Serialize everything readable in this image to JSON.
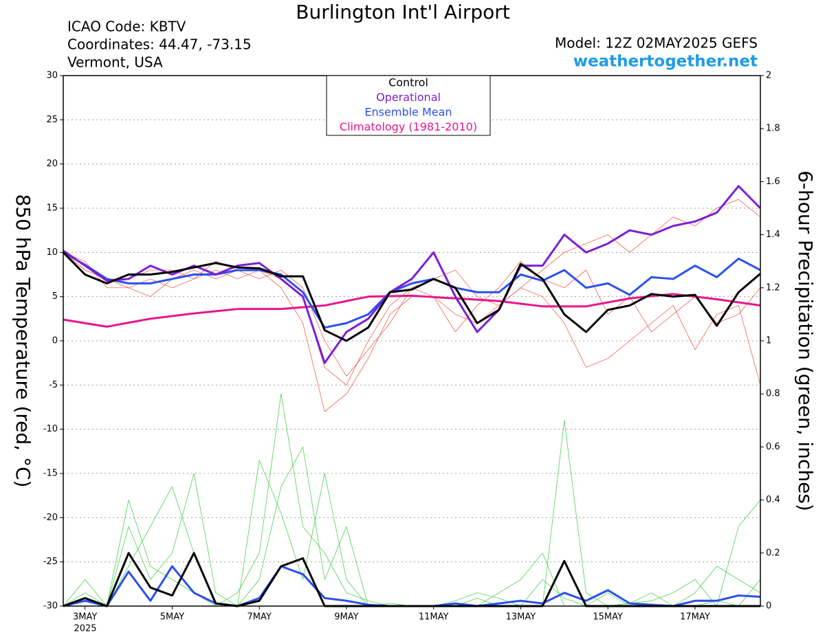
{
  "chart_data": {
    "type": "line",
    "title": "Burlington Int'l Airport",
    "info_lines": [
      "ICAO Code: KBTV",
      "Coordinates: 44.47, -73.15",
      "Vermont, USA"
    ],
    "model": "Model: 12Z 02MAY2025 GEFS",
    "site": "weathertogether.net",
    "y_label": "850 hPa Temperature (red, °C)",
    "y2_label": "6-hour Precipitation (green, inches)",
    "year_label": "2025",
    "grid": true,
    "legend": "top",
    "x": [
      2.5,
      3,
      3.5,
      4,
      4.5,
      5,
      5.5,
      6,
      6.5,
      7,
      7.5,
      8,
      8.5,
      9,
      9.5,
      10,
      10.5,
      11,
      11.5,
      12,
      12.5,
      13,
      13.5,
      14,
      14.5,
      15,
      15.5,
      16,
      16.5,
      17,
      17.5,
      18,
      18.5
    ],
    "xlim": [
      2.5,
      18.5
    ],
    "xticks": [
      {
        "value": 3,
        "label": "3MAY"
      },
      {
        "value": 5,
        "label": "5MAY"
      },
      {
        "value": 7,
        "label": "7MAY"
      },
      {
        "value": 9,
        "label": "9MAY"
      },
      {
        "value": 11,
        "label": "11MAY"
      },
      {
        "value": 13,
        "label": "13MAY"
      },
      {
        "value": 15,
        "label": "15MAY"
      },
      {
        "value": 17,
        "label": "17MAY"
      }
    ],
    "ylim": [
      -30,
      30
    ],
    "yticks": [
      30,
      25,
      20,
      15,
      10,
      5,
      0,
      -5,
      -10,
      -15,
      -20,
      -25,
      -30
    ],
    "y2lim": [
      0,
      2
    ],
    "y2ticks": [
      2,
      1.8,
      1.6,
      1.4,
      1.2,
      1,
      0.8,
      0.6,
      0.4,
      0.2,
      0
    ],
    "series": [
      {
        "color": "#f04a3a",
        "line_width": 0.7,
        "values": [
          10,
          8,
          7,
          6,
          7,
          6,
          7,
          8,
          7,
          8,
          7,
          5,
          -3,
          -5,
          0,
          4,
          6,
          7,
          8,
          5,
          4,
          6,
          8,
          10,
          11,
          12,
          10,
          12,
          14,
          13,
          15,
          16,
          14
        ]
      },
      {
        "color": "#f04a3a",
        "line_width": 0.7,
        "values": [
          10,
          9,
          6,
          6,
          5,
          7,
          8,
          7,
          8,
          8,
          6,
          2,
          -8,
          -6,
          -2,
          3,
          5,
          5,
          3,
          2,
          4,
          6,
          5,
          2,
          -3,
          -2,
          0,
          2,
          4,
          -1,
          3,
          4,
          -5
        ]
      },
      {
        "color": "#f04a3a",
        "line_width": 0.7,
        "values": [
          10,
          8,
          7,
          7,
          8,
          8,
          7,
          9,
          8,
          7,
          8,
          6,
          0,
          -4,
          -1,
          2,
          6,
          5,
          1,
          4,
          6,
          9,
          7,
          6,
          8,
          3,
          5,
          1,
          3,
          5,
          2,
          3,
          6
        ]
      },
      {
        "color": "#33cc33",
        "line_width": 0.7,
        "axis": "y2",
        "values": [
          0,
          0.1,
          0,
          0.3,
          0.1,
          0.2,
          0.5,
          0.05,
          0,
          0.1,
          0.45,
          0.6,
          0.1,
          0.3,
          0,
          0,
          0,
          0,
          0.02,
          0.05,
          0.03,
          0,
          0,
          0.7,
          0.05,
          0,
          0.01,
          0.02,
          0.05,
          0.1,
          0,
          0.3,
          0.4
        ]
      },
      {
        "color": "#33cc33",
        "line_width": 0.7,
        "axis": "y2",
        "values": [
          0,
          0.05,
          0,
          0.15,
          0.3,
          0.45,
          0.2,
          0,
          0.05,
          0.2,
          0.8,
          0.3,
          0.2,
          0.05,
          0.02,
          0,
          0,
          0,
          0,
          0,
          0.05,
          0.1,
          0.2,
          0,
          0,
          0.05,
          0,
          0,
          0,
          0.05,
          0.15,
          0.1,
          0.05
        ]
      },
      {
        "color": "#33cc33",
        "line_width": 0.7,
        "axis": "y2",
        "values": [
          0,
          0.02,
          0,
          0.4,
          0.15,
          0.1,
          0.05,
          0,
          0,
          0.55,
          0.35,
          0.1,
          0.5,
          0.1,
          0,
          0.01,
          0,
          0,
          0,
          0.03,
          0,
          0,
          0.1,
          0.03,
          0,
          0,
          0.01,
          0.05,
          0,
          0,
          0.02,
          0,
          0.1
        ]
      },
      {
        "name": "Climatology (1981-2010)",
        "color": "#e8158c",
        "line_width": 3,
        "values": [
          2.4,
          2.0,
          1.6,
          2.05,
          2.5,
          2.8,
          3.1,
          3.35,
          3.6,
          3.6,
          3.6,
          3.8,
          4.0,
          4.5,
          5.0,
          5.05,
          5.1,
          4.95,
          4.8,
          4.65,
          4.5,
          4.2,
          3.9,
          3.9,
          3.9,
          4.35,
          4.8,
          5.05,
          5.3,
          5.0,
          4.7,
          4.35,
          4.0
        ]
      },
      {
        "name": "Ensemble Mean",
        "color": "#2a4ff0",
        "line_width": 3,
        "values": [
          10,
          8.6,
          7,
          6.5,
          6.5,
          7,
          7.5,
          7.5,
          8,
          8,
          7.5,
          5.5,
          1.5,
          2,
          3,
          5.5,
          6.5,
          7,
          6,
          5.5,
          5.5,
          7.5,
          6.8,
          8,
          6,
          6.5,
          5.2,
          7.2,
          7,
          8.5,
          7.2,
          9.3,
          8
        ]
      },
      {
        "name": "Operational",
        "color": "#7a1fd6",
        "line_width": 3,
        "values": [
          10.2,
          8.5,
          6.8,
          7,
          8.5,
          7.5,
          8.5,
          7.5,
          8.5,
          8.8,
          7,
          5,
          -2.5,
          1,
          2.5,
          5.5,
          7,
          10,
          5,
          1,
          3.5,
          8.5,
          8.5,
          12,
          10,
          11,
          12.5,
          12,
          13,
          13.5,
          14.5,
          17.5,
          15
        ]
      },
      {
        "name": "Control",
        "color": "#000000",
        "line_width": 3,
        "values": [
          10,
          7.5,
          6.5,
          7.5,
          7.5,
          7.8,
          8.3,
          8.8,
          8.3,
          8.2,
          7.3,
          7.3,
          1.2,
          0,
          1.5,
          5.5,
          5.8,
          7,
          6,
          2,
          3.5,
          8.7,
          7,
          3,
          1,
          3.5,
          4,
          5.3,
          5,
          5.2,
          1.7,
          5.5,
          7.6
        ]
      },
      {
        "color": "#2a4ff0",
        "line_width": 3,
        "axis": "y2",
        "values": [
          0,
          0.02,
          0,
          0.13,
          0.02,
          0.15,
          0.05,
          0.01,
          0,
          0.03,
          0.15,
          0.12,
          0.03,
          0.02,
          0.005,
          0,
          0,
          0,
          0.01,
          0,
          0.01,
          0.02,
          0.01,
          0.05,
          0.02,
          0.06,
          0.01,
          0.005,
          0,
          0.02,
          0.02,
          0.04,
          0.035
        ]
      },
      {
        "color": "#000000",
        "line_width": 3,
        "axis": "y2",
        "values": [
          0,
          0.03,
          0,
          0.2,
          0.07,
          0.04,
          0.2,
          0.01,
          0,
          0.02,
          0.15,
          0.18,
          0,
          0,
          0,
          0,
          0,
          0,
          0,
          0,
          0,
          0,
          0,
          0.17,
          0,
          0,
          0,
          0,
          0,
          0,
          0,
          0,
          0
        ]
      }
    ]
  }
}
